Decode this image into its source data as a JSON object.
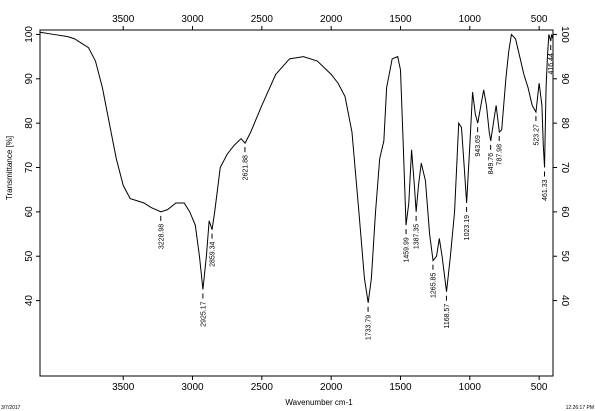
{
  "chart_data": {
    "type": "line",
    "xlabel": "Wavenumber cm-1",
    "ylabel": "Transmittance [%]",
    "xlim": [
      4100,
      400
    ],
    "ylim": [
      23,
      101
    ],
    "xticks": [
      3500,
      3000,
      2500,
      2000,
      1500,
      1000,
      500
    ],
    "yticks": [
      40,
      50,
      60,
      70,
      80,
      90,
      100
    ],
    "color": "#000000",
    "x": [
      4100,
      4000,
      3900,
      3850,
      3800,
      3750,
      3700,
      3650,
      3600,
      3550,
      3500,
      3450,
      3400,
      3350,
      3300,
      3228,
      3180,
      3120,
      3060,
      3020,
      2980,
      2950,
      2925,
      2900,
      2880,
      2859,
      2840,
      2800,
      2750,
      2700,
      2650,
      2621,
      2580,
      2500,
      2400,
      2300,
      2200,
      2100,
      2000,
      1950,
      1900,
      1850,
      1800,
      1760,
      1733,
      1710,
      1680,
      1650,
      1620,
      1600,
      1560,
      1520,
      1500,
      1480,
      1460,
      1440,
      1420,
      1400,
      1387,
      1370,
      1350,
      1320,
      1290,
      1265,
      1240,
      1220,
      1200,
      1168,
      1140,
      1110,
      1080,
      1060,
      1040,
      1023,
      1000,
      980,
      960,
      943,
      920,
      900,
      880,
      860,
      849,
      830,
      810,
      787,
      770,
      740,
      720,
      700,
      670,
      640,
      610,
      580,
      550,
      523,
      500,
      480,
      470,
      461,
      450,
      440,
      430,
      416,
      410,
      400
    ],
    "values": [
      100.5,
      100,
      99.5,
      99,
      98,
      97,
      94,
      88,
      80,
      72,
      66,
      63,
      62.5,
      62,
      61,
      60,
      60.5,
      62,
      62,
      60,
      57,
      50,
      42.5,
      50,
      58,
      56,
      60,
      70,
      73,
      75,
      76.5,
      75.5,
      78,
      84,
      91,
      94.5,
      95,
      94,
      91,
      89,
      86,
      78,
      60,
      45,
      39.5,
      45,
      60,
      72,
      76,
      88,
      94.5,
      95,
      92,
      75,
      57,
      62,
      74,
      66,
      60,
      66,
      71,
      67,
      55,
      49,
      50,
      54,
      50,
      42,
      50,
      60,
      80,
      79,
      70,
      62,
      75,
      87,
      82,
      80,
      84,
      87.5,
      84,
      78,
      76,
      80,
      84,
      78,
      78.5,
      90,
      96,
      100,
      99,
      95,
      91,
      88,
      84,
      82.5,
      89,
      84,
      75,
      70,
      88,
      95,
      100,
      98.5,
      100,
      99
    ],
    "annotations": [
      {
        "x": 3228.98,
        "y": 60
      },
      {
        "x": 2925.17,
        "y": 42.5
      },
      {
        "x": 2859.34,
        "y": 56
      },
      {
        "x": 2621.88,
        "y": 75.5
      },
      {
        "x": 1733.79,
        "y": 39.5
      },
      {
        "x": 1459.99,
        "y": 57
      },
      {
        "x": 1387.35,
        "y": 60
      },
      {
        "x": 1265.85,
        "y": 49
      },
      {
        "x": 1168.57,
        "y": 42
      },
      {
        "x": 1023.19,
        "y": 62
      },
      {
        "x": 943.69,
        "y": 80
      },
      {
        "x": 849.76,
        "y": 76
      },
      {
        "x": 787.98,
        "y": 78
      },
      {
        "x": 523.27,
        "y": 82.5
      },
      {
        "x": 461.33,
        "y": 70
      },
      {
        "x": 416.44,
        "y": 98.5
      }
    ],
    "footer_left": "3/7/2017",
    "footer_right": "12:26:17 PM"
  }
}
